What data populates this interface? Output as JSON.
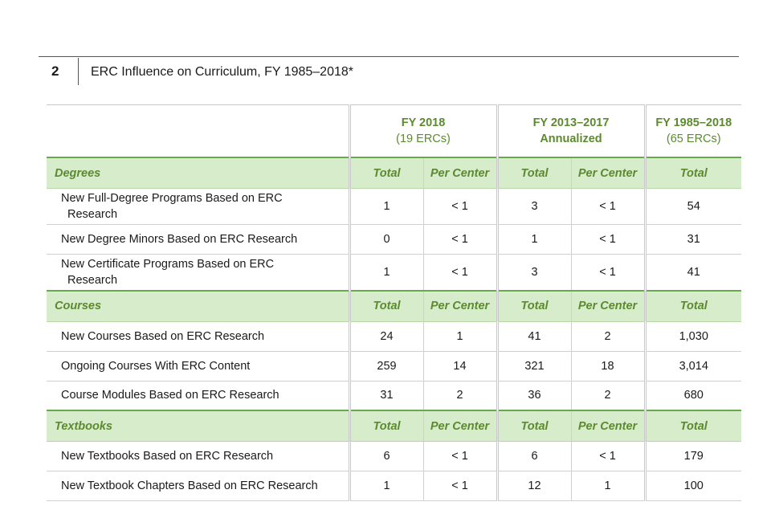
{
  "figure": {
    "number": "2",
    "title": "ERC Influence on Curriculum, FY 1985–2018*"
  },
  "columns": {
    "fy2018": {
      "line1": "FY 2018",
      "line2": "(19 ERCs)"
    },
    "fy2013": {
      "line1": "FY 2013–2017",
      "line2": "Annualized"
    },
    "fy1985": {
      "line1": "FY 1985–2018",
      "line2": "(65 ERCs)"
    }
  },
  "subheaders": {
    "total": "Total",
    "per_center": "Per Center"
  },
  "sections": [
    {
      "name": "Degrees",
      "rows": [
        {
          "label1": "New Full-Degree  Programs Based on ERC",
          "label2": "Research",
          "v": [
            "1",
            "< 1",
            "3",
            "< 1",
            "54"
          ]
        },
        {
          "label1": "New Degree  Minors Based on ERC Research",
          "label2": "",
          "v": [
            "0",
            "< 1",
            "1",
            "< 1",
            "31"
          ]
        },
        {
          "label1": "New Certificate Programs Based on ERC",
          "label2": "Research",
          "v": [
            "1",
            "< 1",
            "3",
            "< 1",
            "41"
          ]
        }
      ]
    },
    {
      "name": "Courses",
      "rows": [
        {
          "label1": "New Courses Based on ERC Research",
          "label2": "",
          "v": [
            "24",
            "1",
            "41",
            "2",
            "1,030"
          ]
        },
        {
          "label1": "Ongoing Courses With ERC Content",
          "label2": "",
          "v": [
            "259",
            "14",
            "321",
            "18",
            "3,014"
          ]
        },
        {
          "label1": "Course Modules Based on ERC Research",
          "label2": "",
          "v": [
            "31",
            "2",
            "36",
            "2",
            "680"
          ]
        }
      ]
    },
    {
      "name": "Textbooks",
      "rows": [
        {
          "label1": "New Textbooks Based on ERC Research",
          "label2": "",
          "v": [
            "6",
            "< 1",
            "6",
            "< 1",
            "179"
          ]
        },
        {
          "label1": "New Textbook Chapters Based on ERC Research",
          "label2": "",
          "v": [
            "1",
            "< 1",
            "12",
            "1",
            "100"
          ]
        }
      ]
    }
  ],
  "colors": {
    "accent": "#5c8a2f",
    "section_bg": "#d6eccb",
    "section_border": "#6aa84f"
  }
}
